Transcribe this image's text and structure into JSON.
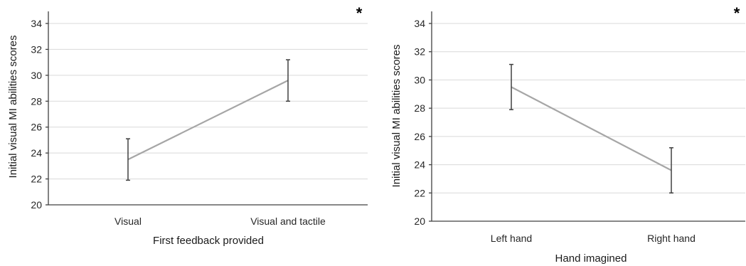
{
  "chart_data": [
    {
      "type": "line",
      "categories": [
        "Visual",
        "Visual and tactile"
      ],
      "values": [
        23.5,
        29.6
      ],
      "error_low": [
        21.9,
        28.0
      ],
      "error_high": [
        25.1,
        31.2
      ],
      "xlabel": "First feedback provided",
      "ylabel": "Initial visual MI abilities scores",
      "ylim": [
        20,
        34
      ],
      "yticks": [
        "20",
        "22",
        "24",
        "26",
        "28",
        "30",
        "32",
        "34"
      ],
      "annotation": "*",
      "grid": true,
      "color": "#a6a6a6"
    },
    {
      "type": "line",
      "categories": [
        "Left hand",
        "Right hand"
      ],
      "values": [
        29.5,
        23.6
      ],
      "error_low": [
        27.9,
        22.0
      ],
      "error_high": [
        31.1,
        25.2
      ],
      "xlabel": "Hand imagined",
      "ylabel": "Initial visual MI abilities scores",
      "ylim": [
        20,
        34
      ],
      "yticks": [
        "20",
        "22",
        "24",
        "26",
        "28",
        "30",
        "32",
        "34"
      ],
      "annotation": "*",
      "grid": true,
      "color": "#a6a6a6"
    }
  ]
}
